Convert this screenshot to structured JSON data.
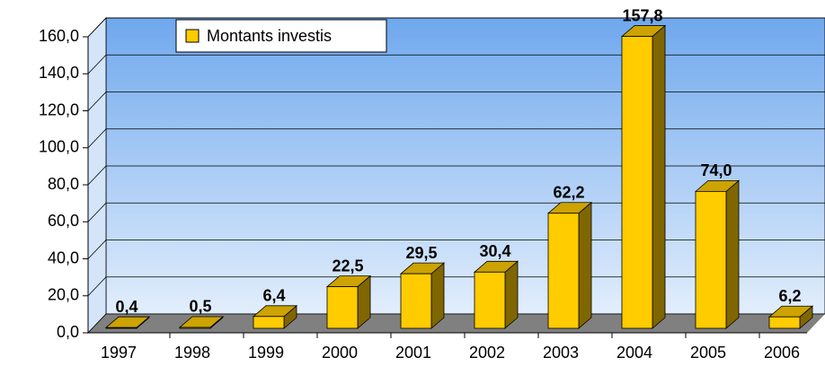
{
  "chart_data": {
    "type": "bar",
    "categories": [
      "1997",
      "1998",
      "1999",
      "2000",
      "2001",
      "2002",
      "2003",
      "2004",
      "2005",
      "2006"
    ],
    "series": [
      {
        "name": "Montants investis",
        "color": "#FFCC00",
        "values": [
          0.4,
          0.5,
          6.4,
          22.5,
          29.5,
          30.4,
          62.2,
          157.8,
          74.0,
          6.2
        ],
        "value_labels": [
          "0,4",
          "0,5",
          "6,4",
          "22,5",
          "29,5",
          "30,4",
          "62,2",
          "157,8",
          "74,0",
          "6,2"
        ]
      }
    ],
    "ylim": [
      0,
      160
    ],
    "yticks": [
      {
        "value": 0,
        "label": "0,0"
      },
      {
        "value": 20,
        "label": "20,0"
      },
      {
        "value": 40,
        "label": "40,0"
      },
      {
        "value": 60,
        "label": "60,0"
      },
      {
        "value": 80,
        "label": "80,0"
      },
      {
        "value": 100,
        "label": "100,0"
      },
      {
        "value": 120,
        "label": "120,0"
      },
      {
        "value": 140,
        "label": "140,0"
      },
      {
        "value": 160,
        "label": "160,0"
      }
    ],
    "grid": true,
    "legend": "top-left"
  }
}
